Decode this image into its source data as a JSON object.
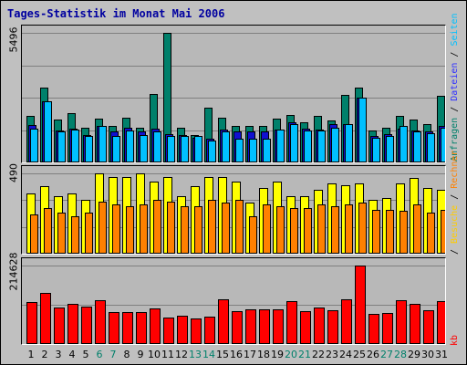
{
  "title": "Tages-Statistik im Monat Mai 2006",
  "y_labels": {
    "requests_max": "5496",
    "visits_max": "490",
    "kb_max": "214628"
  },
  "legend": {
    "top": [
      {
        "text": "Anfragen",
        "color": "#00806b"
      },
      {
        "text": " / ",
        "color": "#000000"
      },
      {
        "text": "Dateien",
        "color": "#3030ff"
      },
      {
        "text": " / ",
        "color": "#000000"
      },
      {
        "text": "Seiten",
        "color": "#00c0ff"
      }
    ],
    "middle": [
      {
        "text": " / ",
        "color": "#000000"
      },
      {
        "text": "Besuche",
        "color": "#ffcc00"
      },
      {
        "text": " / ",
        "color": "#000000"
      },
      {
        "text": "Rechner",
        "color": "#ff8000"
      }
    ],
    "bottom": [
      {
        "text": "kb",
        "color": "#ff0000"
      }
    ]
  },
  "colors": {
    "anfragen": "#00806b",
    "dateien": "#1010d0",
    "seiten": "#00c0ff",
    "besuche": "#ffff00",
    "rechner": "#ff8000",
    "kb": "#ff0000",
    "weekend_day": "#00806b",
    "weekday": "#000000"
  },
  "days": [
    "1",
    "2",
    "3",
    "4",
    "5",
    "6",
    "7",
    "8",
    "9",
    "10",
    "11",
    "12",
    "13",
    "14",
    "15",
    "16",
    "17",
    "18",
    "19",
    "20",
    "21",
    "22",
    "23",
    "24",
    "25",
    "26",
    "27",
    "28",
    "29",
    "30",
    "31"
  ],
  "weekend_days": [
    6,
    7,
    13,
    14,
    20,
    21,
    27,
    28
  ],
  "chart_data": [
    {
      "type": "bar",
      "ylim": [
        0,
        5496
      ],
      "y_tick_label": "5496",
      "categories": [
        "1",
        "2",
        "3",
        "4",
        "5",
        "6",
        "7",
        "8",
        "9",
        "10",
        "11",
        "12",
        "13",
        "14",
        "15",
        "16",
        "17",
        "18",
        "19",
        "20",
        "21",
        "22",
        "23",
        "24",
        "25",
        "26",
        "27",
        "28",
        "29",
        "30",
        "31"
      ],
      "series": [
        {
          "name": "Anfragen",
          "values": [
            1960,
            3190,
            1830,
            2080,
            1490,
            1860,
            1530,
            1880,
            1490,
            2900,
            5496,
            1490,
            1150,
            2310,
            1880,
            1530,
            1530,
            1530,
            1860,
            2010,
            1720,
            1990,
            1790,
            2850,
            3190,
            1370,
            1490,
            1990,
            1830,
            1640,
            2840
          ]
        },
        {
          "name": "Dateien",
          "values": [
            1570,
            2610,
            1370,
            1440,
            1180,
            1560,
            1300,
            1490,
            1300,
            1440,
            1190,
            1180,
            1040,
            1010,
            1380,
            1300,
            1300,
            1300,
            1390,
            1710,
            1420,
            1400,
            1620,
            1630,
            2760,
            1110,
            1200,
            1440,
            1360,
            1310,
            1530
          ]
        },
        {
          "name": "Seiten",
          "values": [
            1420,
            2610,
            1330,
            1400,
            1140,
            1560,
            1110,
            1370,
            1170,
            1330,
            1110,
            1130,
            1110,
            920,
            1300,
            1000,
            1000,
            1000,
            1390,
            1640,
            1370,
            1340,
            1480,
            1630,
            2760,
            1040,
            1110,
            1530,
            1330,
            1250,
            1470
          ]
        }
      ]
    },
    {
      "type": "bar",
      "ylim": [
        0,
        490
      ],
      "y_tick_label": "490",
      "categories": [
        "1",
        "2",
        "3",
        "4",
        "5",
        "6",
        "7",
        "8",
        "9",
        "10",
        "11",
        "12",
        "13",
        "14",
        "15",
        "16",
        "17",
        "18",
        "19",
        "20",
        "21",
        "22",
        "23",
        "24",
        "25",
        "26",
        "27",
        "28",
        "29",
        "30",
        "31"
      ],
      "series": [
        {
          "name": "Besuche",
          "values": [
            370,
            410,
            350,
            370,
            330,
            490,
            470,
            470,
            490,
            440,
            470,
            350,
            410,
            470,
            470,
            440,
            310,
            400,
            440,
            350,
            350,
            390,
            430,
            420,
            430,
            330,
            340,
            430,
            460,
            400,
            390
          ]
        },
        {
          "name": "Rechner",
          "values": [
            240,
            280,
            250,
            230,
            250,
            320,
            300,
            290,
            300,
            330,
            320,
            290,
            290,
            330,
            310,
            330,
            230,
            300,
            290,
            280,
            280,
            300,
            290,
            300,
            310,
            270,
            270,
            260,
            300,
            250,
            270
          ]
        }
      ]
    },
    {
      "type": "bar",
      "ylim": [
        0,
        214628
      ],
      "y_tick_label": "214628",
      "categories": [
        "1",
        "2",
        "3",
        "4",
        "5",
        "6",
        "7",
        "8",
        "9",
        "10",
        "11",
        "12",
        "13",
        "14",
        "15",
        "16",
        "17",
        "18",
        "19",
        "20",
        "21",
        "22",
        "23",
        "24",
        "25",
        "26",
        "27",
        "28",
        "29",
        "30",
        "31"
      ],
      "series": [
        {
          "name": "kb",
          "values": [
            115000,
            141000,
            100000,
            110000,
            103000,
            121000,
            88000,
            87000,
            87000,
            97000,
            73000,
            77000,
            71000,
            74000,
            122000,
            90000,
            94000,
            95000,
            94000,
            118000,
            89000,
            100000,
            93000,
            123000,
            214628,
            82000,
            84000,
            120000,
            109000,
            93000,
            117000
          ]
        }
      ]
    }
  ]
}
